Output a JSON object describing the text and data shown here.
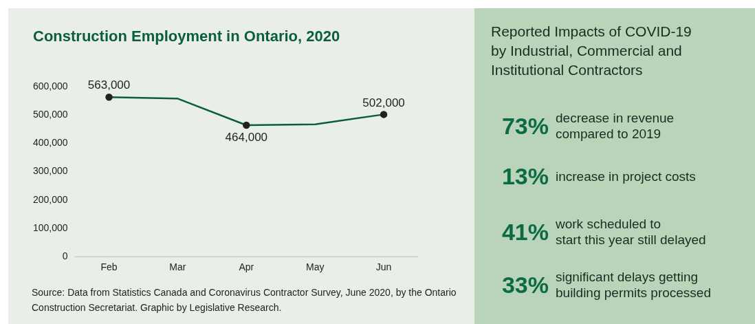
{
  "chart_data": [
    {
      "type": "line",
      "title": "Construction Employment in Ontario, 2020",
      "categories": [
        "Feb",
        "Mar",
        "Apr",
        "May",
        "Jun"
      ],
      "series": [
        {
          "color": "#0b5e3c",
          "values": [
            563000,
            558000,
            464000,
            467000,
            502000
          ]
        }
      ],
      "value_labels": [
        "563,000",
        null,
        "464,000",
        null,
        "502,000"
      ],
      "ylim": [
        0,
        600000
      ],
      "yticks": [
        0,
        {
          "value": 100000,
          "label": "100,000"
        },
        {
          "value": 200000,
          "label": "200,000"
        },
        {
          "value": 300000,
          "label": "300,000"
        },
        {
          "value": 400000,
          "label": "400,000"
        },
        {
          "value": 500000,
          "label": "500,000"
        },
        {
          "value": 600000,
          "label": "600,000"
        }
      ],
      "grid": false,
      "legend": false,
      "marker": "circle",
      "line_style": "solid",
      "annotations": [
        "Source: Data from Statistics Canada and Coronavirus Contractor Survey, June 2020, by the Ontario Construction Secretariat. Graphic by Legislative Research."
      ]
    },
    {
      "type": "other",
      "title": "Reported Impacts of COVID-19\nby Industrial, Commercial and\nInstitutional Contractors",
      "annotations": [
        "73%",
        "decrease in revenue\ncompared to 2019",
        "13%",
        "increase in project costs",
        "41%",
        "work scheduled to\nstart this year still delayed",
        "33%",
        "significant delays getting\nbuilding permits processed"
      ]
    }
  ]
}
